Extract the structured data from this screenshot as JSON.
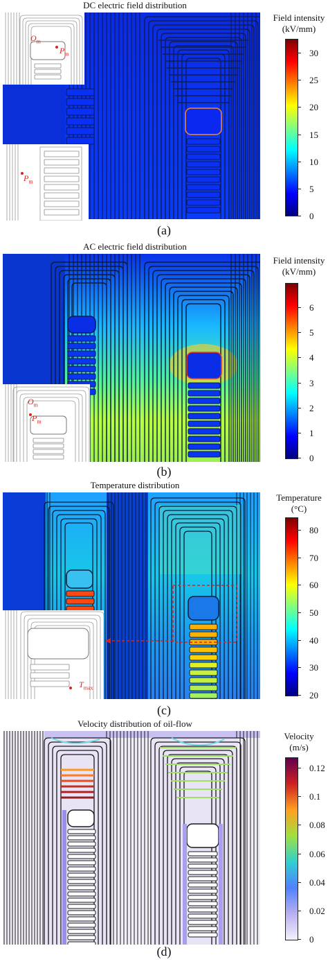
{
  "panels": [
    {
      "title": "DC electric field distribution",
      "label": "(a)",
      "colorbar_title_line1": "Field intensity",
      "colorbar_title_line2": "(kV/mm)",
      "ticks": [
        "30",
        "25",
        "20",
        "15",
        "10",
        "5",
        "0"
      ],
      "markers": {
        "o": "O",
        "o_sub": "m",
        "p": "P",
        "p_sub": "m",
        "p2": "P",
        "p2_sub": "m"
      }
    },
    {
      "title": "AC electric field distribution",
      "label": "(b)",
      "colorbar_title_line1": "Field intensity",
      "colorbar_title_line2": "(kV/mm)",
      "ticks": [
        "6",
        "5",
        "4",
        "3",
        "2",
        "1",
        "0"
      ],
      "markers": {
        "o": "O",
        "o_sub": "m",
        "p": "P",
        "p_sub": "m"
      }
    },
    {
      "title": "Temperature distribution",
      "label": "(c)",
      "colorbar_title_line1": "Temperature",
      "colorbar_title_line2": "(°C)",
      "ticks": [
        "80",
        "70",
        "60",
        "50",
        "40",
        "30",
        "20"
      ],
      "markers": {
        "t": "T",
        "t_sub": "max"
      }
    },
    {
      "title": "Velocity distribution of oil-flow",
      "label": "(d)",
      "colorbar_title_line1": "Velocity",
      "colorbar_title_line2": "(m/s)",
      "ticks": [
        "0.12",
        "0.1",
        "0.08",
        "0.06",
        "0.04",
        "0.02",
        "0"
      ]
    }
  ],
  "colors": {
    "jet": [
      "#00007f",
      "#0000ff",
      "#0080ff",
      "#00ffff",
      "#80ff80",
      "#ffff00",
      "#ff8000",
      "#ff0000",
      "#7f0000"
    ],
    "velocity": [
      "#f4f0fa",
      "#b8b0f0",
      "#5080ff",
      "#30d0d0",
      "#a0e040",
      "#ffa020",
      "#d02020",
      "#600050"
    ],
    "marker": "#e0201c"
  }
}
